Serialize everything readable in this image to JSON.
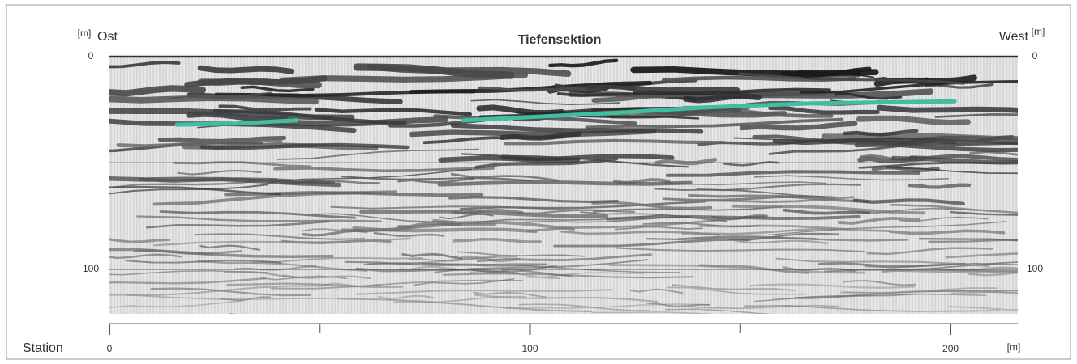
{
  "chart_data": {
    "type": "seismic-section",
    "title": "Tiefensektion",
    "left_label": "Ost",
    "right_label": "West",
    "y_unit": "[m]",
    "x_label": "Station",
    "x_unit": "[m]",
    "xlim": [
      0,
      216
    ],
    "xticks": [
      0,
      100,
      200
    ],
    "xminor_ticks": [
      50,
      150
    ],
    "ylim": [
      0,
      121
    ],
    "yticks": [
      0,
      100
    ],
    "grid_lines": [
      0,
      50,
      100
    ],
    "horizons": [
      {
        "color": "#3fbf9f",
        "x": [
          16,
          30,
          44.5
        ],
        "y": [
          32,
          31.5,
          30
        ]
      },
      {
        "color": "#3fbf9f",
        "x": [
          84,
          119,
          140,
          167,
          201
        ],
        "y": [
          30,
          26.6,
          24,
          22,
          21
        ]
      }
    ]
  }
}
